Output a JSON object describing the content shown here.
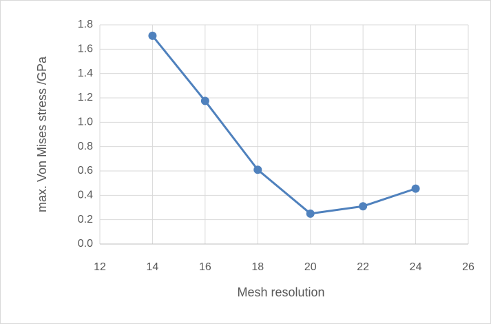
{
  "chart_data": {
    "type": "line",
    "x": [
      14,
      16,
      18,
      20,
      22,
      24
    ],
    "series": [
      {
        "name": null,
        "color": "#4f81bd",
        "values": [
          1.71,
          1.175,
          0.61,
          0.25,
          0.31,
          0.455
        ]
      }
    ],
    "xlabel": "Mesh resolution",
    "ylabel": "max. Von Mises stress /GPa",
    "xlim": [
      12,
      26
    ],
    "xticks": [
      12,
      14,
      16,
      18,
      20,
      22,
      24,
      26
    ],
    "ylim": [
      0,
      1.8
    ],
    "yticks": [
      {
        "value": 0,
        "label": "0.0"
      },
      0.2,
      0.4,
      0.6,
      0.8,
      {
        "value": 1,
        "label": "1.0"
      },
      1.2,
      1.4,
      1.6,
      1.8
    ],
    "grid": true
  }
}
